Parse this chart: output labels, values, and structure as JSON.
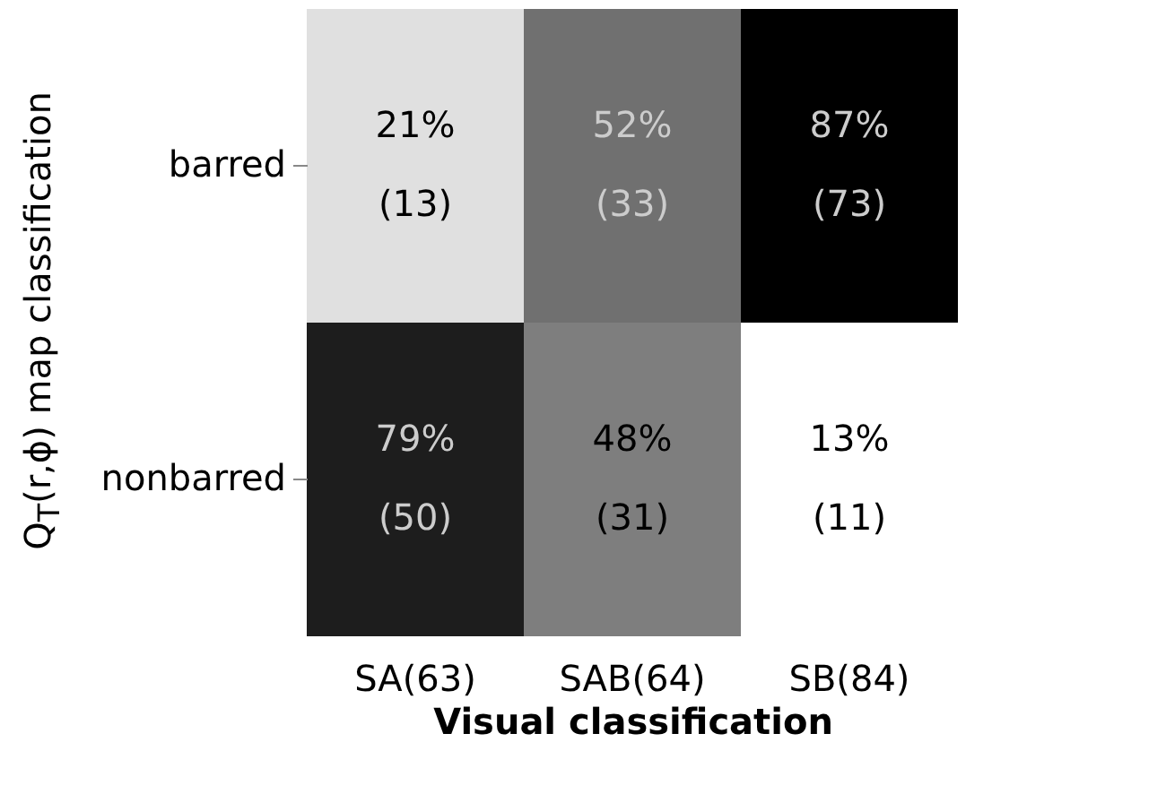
{
  "chart_data": {
    "type": "heatmap",
    "xlabel": "Visual classification",
    "ylabel": "Q$_{T}$(r,ϕ) map classification",
    "categories": [
      "SA(63)",
      "SAB(64)",
      "SB(84)"
    ],
    "y_categories": [
      "barred",
      "nonbarred"
    ],
    "cells": [
      [
        21,
        52,
        87
      ],
      [
        79,
        48,
        13
      ]
    ],
    "cell_labels": [
      [
        "21%",
        "52%",
        "87%"
      ],
      [
        "79%",
        "48%",
        "13%"
      ]
    ],
    "annotations": [
      "(13)",
      "(33)",
      "(73)",
      "(50)",
      "(31)",
      "(11)"
    ]
  }
}
